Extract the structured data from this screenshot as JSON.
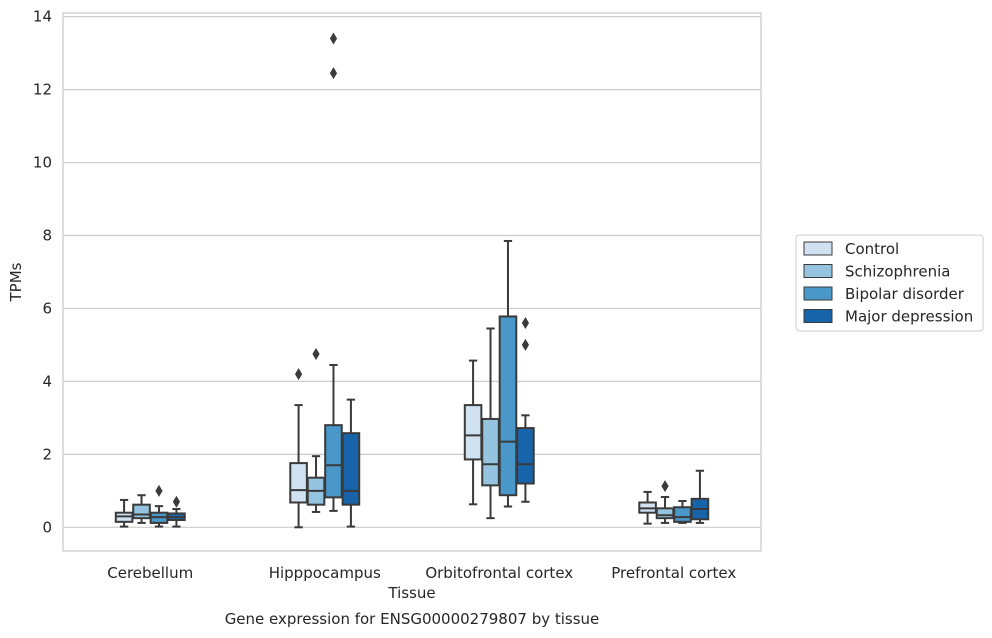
{
  "caption": "Gene expression for ENSG00000279807 by tissue",
  "chart_data": {
    "type": "box",
    "title": "",
    "xlabel": "Tissue",
    "ylabel": "TPMs",
    "ylim": [
      -0.65,
      14.1
    ],
    "yticks": [
      0,
      2,
      4,
      6,
      8,
      10,
      12,
      14
    ],
    "grid": "horizontal",
    "legend_position": "right",
    "categories": [
      "Cerebellum",
      "Hipppocampus",
      "Orbitofrontal cortex",
      "Prefrontal cortex"
    ],
    "series": [
      {
        "name": "Control",
        "color": "#d0e1f2",
        "boxes": [
          {
            "whislo": 0.02,
            "q1": 0.15,
            "med": 0.3,
            "q3": 0.4,
            "whishi": 0.75,
            "fliers": []
          },
          {
            "whislo": 0.0,
            "q1": 0.68,
            "med": 1.02,
            "q3": 1.76,
            "whishi": 3.35,
            "fliers": [
              4.2
            ]
          },
          {
            "whislo": 0.63,
            "q1": 1.86,
            "med": 2.52,
            "q3": 3.35,
            "whishi": 4.57,
            "fliers": []
          },
          {
            "whislo": 0.1,
            "q1": 0.4,
            "med": 0.52,
            "q3": 0.68,
            "whishi": 0.97,
            "fliers": []
          }
        ]
      },
      {
        "name": "Schizophrenia",
        "color": "#94c4df",
        "boxes": [
          {
            "whislo": 0.12,
            "q1": 0.25,
            "med": 0.35,
            "q3": 0.62,
            "whishi": 0.88,
            "fliers": []
          },
          {
            "whislo": 0.42,
            "q1": 0.62,
            "med": 1.0,
            "q3": 1.36,
            "whishi": 1.95,
            "fliers": [
              4.75
            ]
          },
          {
            "whislo": 0.25,
            "q1": 1.15,
            "med": 1.73,
            "q3": 2.97,
            "whishi": 5.45,
            "fliers": []
          },
          {
            "whislo": 0.12,
            "q1": 0.25,
            "med": 0.33,
            "q3": 0.52,
            "whishi": 0.83,
            "fliers": [
              1.13
            ]
          }
        ]
      },
      {
        "name": "Bipolar disorder",
        "color": "#4a98c9",
        "boxes": [
          {
            "whislo": 0.02,
            "q1": 0.12,
            "med": 0.28,
            "q3": 0.4,
            "whishi": 0.58,
            "fliers": [
              1.0
            ]
          },
          {
            "whislo": 0.45,
            "q1": 0.82,
            "med": 1.7,
            "q3": 2.8,
            "whishi": 4.45,
            "fliers": [
              12.45,
              13.4
            ]
          },
          {
            "whislo": 0.57,
            "q1": 0.88,
            "med": 2.35,
            "q3": 5.78,
            "whishi": 7.85,
            "fliers": []
          },
          {
            "whislo": 0.12,
            "q1": 0.15,
            "med": 0.28,
            "q3": 0.55,
            "whishi": 0.72,
            "fliers": []
          }
        ]
      },
      {
        "name": "Major depression",
        "color": "#1764ab",
        "boxes": [
          {
            "whislo": 0.02,
            "q1": 0.2,
            "med": 0.28,
            "q3": 0.38,
            "whishi": 0.5,
            "fliers": [
              0.7
            ]
          },
          {
            "whislo": 0.02,
            "q1": 0.62,
            "med": 1.0,
            "q3": 2.58,
            "whishi": 3.5,
            "fliers": []
          },
          {
            "whislo": 0.7,
            "q1": 1.2,
            "med": 1.73,
            "q3": 2.72,
            "whishi": 3.07,
            "fliers": [
              5.0,
              5.6
            ]
          },
          {
            "whislo": 0.12,
            "q1": 0.22,
            "med": 0.5,
            "q3": 0.78,
            "whishi": 1.55,
            "fliers": []
          }
        ]
      }
    ]
  }
}
